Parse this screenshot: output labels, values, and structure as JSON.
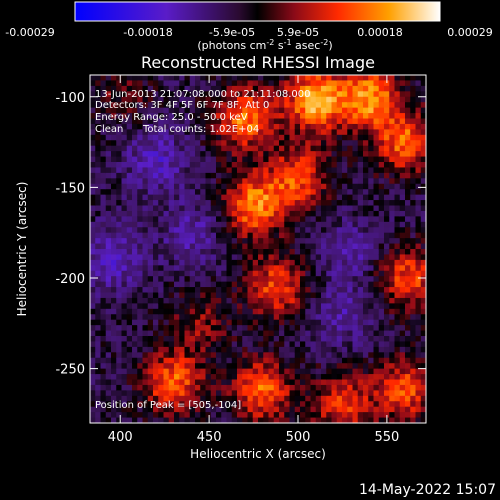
{
  "chart_data": {
    "type": "heatmap",
    "title": "Reconstructed RHESSI Image",
    "xlabel": "Heliocentric X (arcsec)",
    "ylabel": "Heliocentric Y (arcsec)",
    "xlim": [
      383,
      572
    ],
    "ylim": [
      -280,
      -88
    ],
    "xticks": [
      400,
      450,
      500,
      550
    ],
    "yticks": [
      -100,
      -150,
      -200,
      -250
    ],
    "colorbar": {
      "ticks": [
        "-0.00029",
        "-0.00018",
        "-5.9e-05",
        "5.9e-05",
        "0.00018",
        "0.00029"
      ],
      "range": [
        -0.00029,
        0.00029
      ],
      "unit_text": "(photons cm",
      "unit_sup1": "-2",
      "unit_mid": " s",
      "unit_sup2": "-1",
      "unit_end": " asec",
      "unit_sup3": "-2",
      "unit_close": ")"
    },
    "annotations": [
      "13-Jun-2013 21:07:08.000 to 21:11:08.000",
      "Detectors: 3F 4F 5F 6F 7F 8F, Att 0",
      "Energy Range: 25.0 - 50.0 keV",
      "Clean",
      "Total counts: 1.02E+04",
      "Position of Peak = [505,-104]"
    ],
    "footer_date": "14-May-2022 15:07",
    "bright_regions": [
      {
        "x": 510,
        "y": -102,
        "value": 0.00029
      },
      {
        "x": 540,
        "y": -100,
        "value": 0.00026
      },
      {
        "x": 470,
        "y": -112,
        "value": 0.00024
      },
      {
        "x": 560,
        "y": -125,
        "value": 0.00022
      },
      {
        "x": 475,
        "y": -160,
        "value": 0.00025
      },
      {
        "x": 500,
        "y": -145,
        "value": 0.0002
      },
      {
        "x": 488,
        "y": -205,
        "value": 0.0002
      },
      {
        "x": 562,
        "y": -200,
        "value": 0.0002
      },
      {
        "x": 430,
        "y": -258,
        "value": 0.00022
      },
      {
        "x": 480,
        "y": -262,
        "value": 0.00022
      },
      {
        "x": 525,
        "y": -270,
        "value": 0.00018
      },
      {
        "x": 560,
        "y": -262,
        "value": 0.0002
      },
      {
        "x": 445,
        "y": -225,
        "value": 0.0001
      },
      {
        "x": 400,
        "y": -100,
        "value": 8e-05
      }
    ],
    "dim_regions": [
      {
        "x": 420,
        "y": -135,
        "value": -0.00012
      },
      {
        "x": 395,
        "y": -190,
        "value": -0.00012
      },
      {
        "x": 440,
        "y": -175,
        "value": -0.0001
      },
      {
        "x": 530,
        "y": -185,
        "value": -9e-05
      },
      {
        "x": 525,
        "y": -220,
        "value": -9e-05
      }
    ]
  }
}
